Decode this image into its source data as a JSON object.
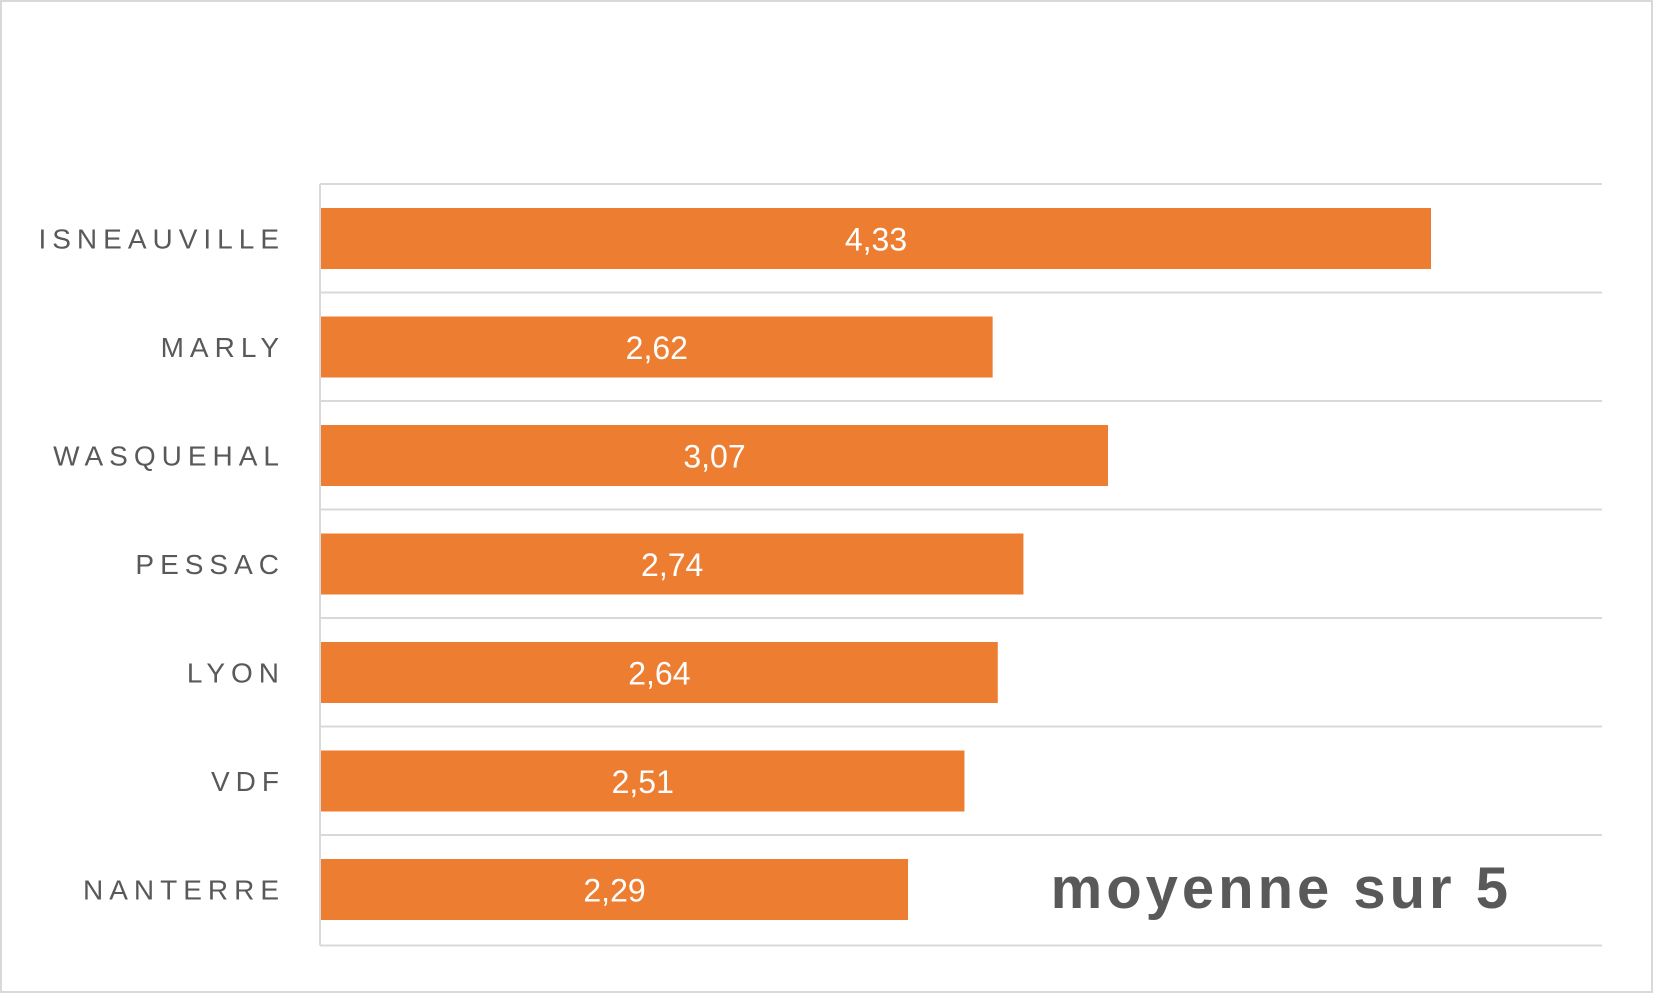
{
  "chart_data": {
    "type": "bar",
    "orientation": "horizontal",
    "categories": [
      "ISNEAUVILLE",
      "MARLY",
      "WASQUEHAL",
      "PESSAC",
      "LYON",
      "VDF",
      "NANTERRE"
    ],
    "values": [
      4.33,
      2.62,
      3.07,
      2.74,
      2.64,
      2.51,
      2.29
    ],
    "data_labels": [
      "4,33",
      "2,62",
      "3,07",
      "2,74",
      "2,64",
      "2,51",
      "2,29"
    ],
    "xlim": [
      0,
      5
    ],
    "title": "",
    "xlabel": "",
    "ylabel": "",
    "annotation": "moyenne sur 5",
    "grid": "horizontal separators between categories",
    "legend": "none",
    "bar_color": "#ed7d31",
    "label_color": "#595959",
    "data_label_color": "#ffffff",
    "grid_color": "#d9d9d9"
  }
}
